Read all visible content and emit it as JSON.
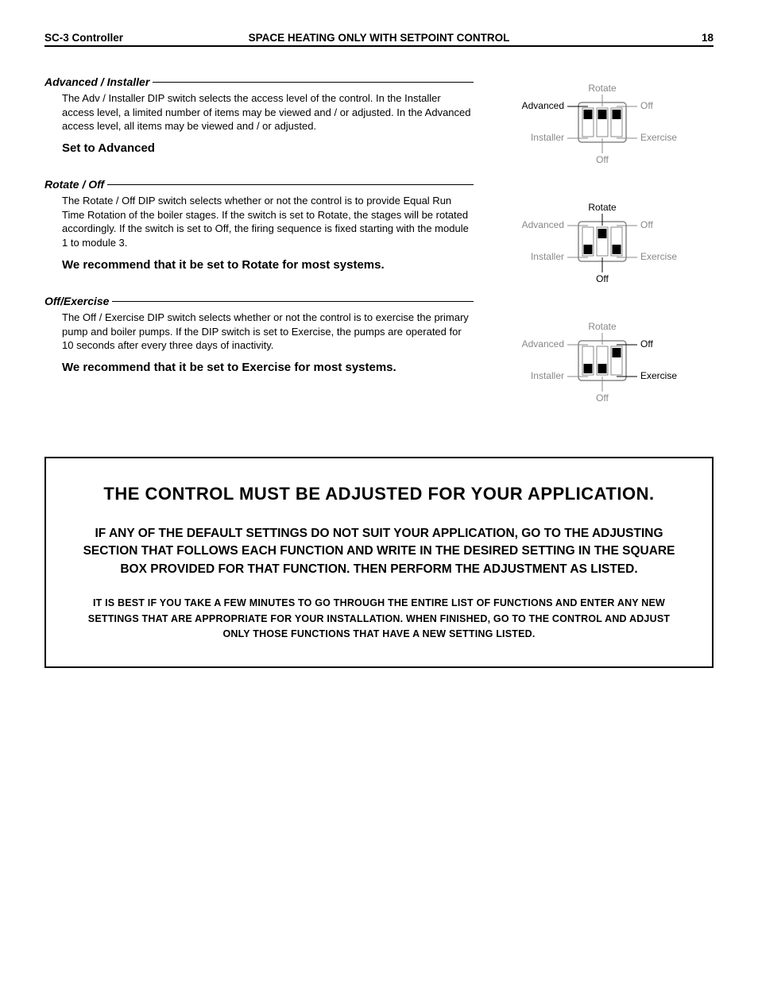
{
  "header": {
    "left": "SC-3 Controller",
    "center": "SPACE HEATING ONLY WITH SETPOINT CONTROL",
    "page": "18"
  },
  "sections": [
    {
      "title": "Advanced / Installer",
      "body": "The Adv / Installer DIP switch selects the access level of the control. In the Installer access level, a limited number of items may be viewed and / or adjusted. In the Advanced access level, all items may be viewed and / or adjusted.",
      "reco": "Set to Advanced"
    },
    {
      "title": "Rotate / Off",
      "body": "The Rotate / Off DIP switch selects whether or not the control is to provide Equal Run Time Rotation of the boiler stages. If the switch is set to Rotate, the stages will be rotated accordingly. If the switch is set to Off, the firing sequence is fixed starting with the module 1 to module 3.",
      "reco": "We recommend that it be set to Rotate for most systems."
    },
    {
      "title": "Off/Exercise",
      "body": "The Off / Exercise DIP switch selects whether or not the control is to exercise the primary pump and boiler pumps. If the DIP switch is set to Exercise, the pumps are operated for 10 seconds after every three days of inactivity.",
      "reco": "We recommend that it be set to Exercise for most systems."
    }
  ],
  "diagrams": {
    "labels": {
      "top": "Rotate",
      "bottom": "Off",
      "left_top": "Advanced",
      "left_bottom": "Installer",
      "right_top": "Off",
      "right_bottom": "Exercise"
    },
    "colors": {
      "active": "#000000",
      "inactive": "#888888",
      "housing_stroke": "#888888",
      "slot_fill": "#ffffff",
      "slider_fill": "#000000"
    },
    "states": [
      {
        "switches": [
          "up",
          "up",
          "up"
        ],
        "active_labels": [
          "left_top"
        ]
      },
      {
        "switches": [
          "down",
          "up",
          "down"
        ],
        "active_labels": [
          "top",
          "bottom"
        ]
      },
      {
        "switches": [
          "down",
          "down",
          "up"
        ],
        "active_labels": [
          "right_top",
          "right_bottom"
        ]
      }
    ]
  },
  "notice": {
    "heading": "THE CONTROL MUST BE ADJUSTED FOR YOUR APPLICATION.",
    "para1": "IF ANY OF THE DEFAULT SETTINGS DO NOT SUIT YOUR APPLICATION, GO TO THE ADJUSTING SECTION THAT FOLLOWS EACH FUNCTION AND WRITE IN THE DESIRED SETTING IN THE SQUARE BOX PROVIDED FOR THAT FUNCTION. THEN PERFORM THE ADJUSTMENT AS LISTED.",
    "para2": "IT IS BEST IF YOU TAKE A FEW MINUTES TO GO THROUGH THE ENTIRE LIST OF FUNCTIONS AND ENTER ANY NEW SETTINGS THAT ARE APPROPRIATE FOR YOUR INSTALLATION. WHEN FINISHED, GO TO THE CONTROL AND ADJUST ONLY THOSE FUNCTIONS THAT HAVE A NEW SETTING LISTED."
  }
}
